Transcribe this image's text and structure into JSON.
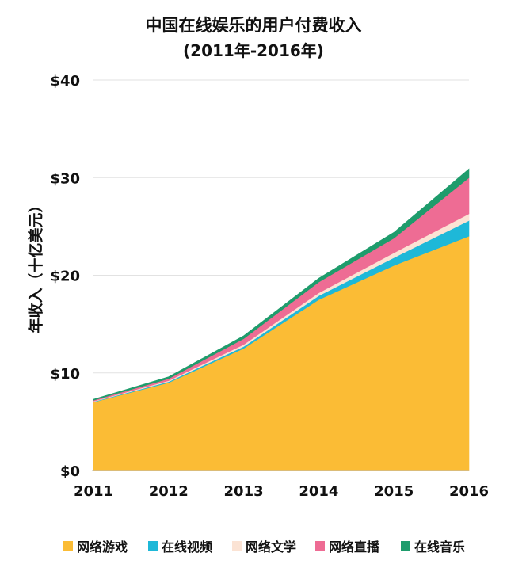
{
  "chart_data": {
    "type": "area",
    "stacked": true,
    "title": "中国在线娱乐的用户付费收入",
    "subtitle": "(2011年-2016年)",
    "ylabel": "年收入（十亿美元）",
    "xlabel": "",
    "x": [
      "2011",
      "2012",
      "2013",
      "2014",
      "2015",
      "2016"
    ],
    "ylim": [
      0,
      40
    ],
    "yticks": [
      "$0",
      "$10",
      "$20",
      "$30",
      "$40"
    ],
    "ytick_values": [
      0,
      10,
      20,
      30,
      40
    ],
    "grid": true,
    "legend_position": "bottom",
    "series": [
      {
        "name": "网络游戏",
        "color": "#FBBC35",
        "values": [
          7.0,
          9.0,
          12.5,
          17.5,
          21.0,
          24.0
        ]
      },
      {
        "name": "在线视频",
        "color": "#1EB8D8",
        "values": [
          0.05,
          0.1,
          0.2,
          0.4,
          0.8,
          1.6
        ]
      },
      {
        "name": "网络文学",
        "color": "#FBE3D4",
        "values": [
          0.05,
          0.1,
          0.2,
          0.3,
          0.5,
          0.7
        ]
      },
      {
        "name": "网络直播",
        "color": "#EE6C94",
        "values": [
          0.1,
          0.2,
          0.6,
          1.1,
          1.5,
          3.7
        ]
      },
      {
        "name": "在线音乐",
        "color": "#1E9C6C",
        "values": [
          0.1,
          0.2,
          0.3,
          0.4,
          0.6,
          0.9
        ]
      }
    ]
  }
}
